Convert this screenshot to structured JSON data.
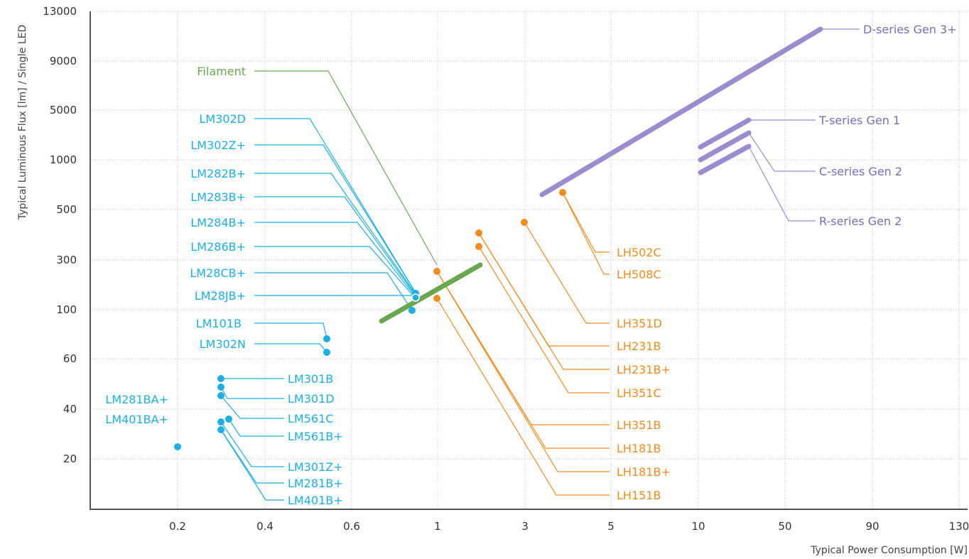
{
  "colors": {
    "lm": "#1ab0e6",
    "lh": "#f28c1e",
    "purple": "#9a8ccf",
    "purple_text": "#7a6bb8",
    "filament": "#6aa84f",
    "grid": "#bdbdbd",
    "axis": "#555555"
  },
  "chart_data": {
    "type": "scatter",
    "xlabel": "Typical Power Consumption [W]",
    "ylabel": "Typical Luminous Flux [lm] / Single LED",
    "x_ticks": [
      "0.2",
      "0.4",
      "0.6",
      "1",
      "3",
      "5",
      "10",
      "50",
      "90",
      "130"
    ],
    "y_ticks": [
      "13000",
      "9000",
      "5000",
      "1000",
      "500",
      "300",
      "100",
      "60",
      "40",
      "20"
    ],
    "y_scale": "categorical (non-linear)",
    "x_scale": "categorical (non-linear)",
    "grid": true,
    "series": [
      {
        "name": "LM101B",
        "family": "LM",
        "power_w": 0.54,
        "flux_lm": 76
      },
      {
        "name": "LM302N",
        "family": "LM",
        "power_w": 0.54,
        "flux_lm": 65
      },
      {
        "name": "LM301B",
        "family": "LM",
        "power_w": 0.3,
        "flux_lm": 52
      },
      {
        "name": "LM301D",
        "family": "LM",
        "power_w": 0.3,
        "flux_lm": 48
      },
      {
        "name": "LM561C",
        "family": "LM",
        "power_w": 0.3,
        "flux_lm": 45
      },
      {
        "name": "LM561B+",
        "family": "LM",
        "power_w": 0.32,
        "flux_lm": 36
      },
      {
        "name": "LM301Z+",
        "family": "LM",
        "power_w": 0.3,
        "flux_lm": 35
      },
      {
        "name": "LM281B+",
        "family": "LM",
        "power_w": 0.3,
        "flux_lm": 31
      },
      {
        "name": "LM401B+",
        "family": "LM",
        "power_w": 0.3,
        "flux_lm": 31
      },
      {
        "name": "LM281BA+ / LM401BA+",
        "family": "LM",
        "power_w": 0.2,
        "flux_lm": 25
      },
      {
        "name": "LM302D",
        "family": "LM",
        "power_w": 0.9,
        "flux_lm": 150
      },
      {
        "name": "LM302Z+",
        "family": "LM",
        "power_w": 0.9,
        "flux_lm": 140
      },
      {
        "name": "LM282B+",
        "family": "LM",
        "power_w": 0.9,
        "flux_lm": 135
      },
      {
        "name": "LM283B+",
        "family": "LM",
        "power_w": 0.9,
        "flux_lm": 130
      },
      {
        "name": "LM284B+",
        "family": "LM",
        "power_w": 0.9,
        "flux_lm": 125
      },
      {
        "name": "LM286B+",
        "family": "LM",
        "power_w": 0.9,
        "flux_lm": 120
      },
      {
        "name": "LM28CB+",
        "family": "LM",
        "power_w": 0.88,
        "flux_lm": 100
      },
      {
        "name": "LM28JB+",
        "family": "LM",
        "power_w": 0.88,
        "flux_lm": 100
      },
      {
        "name": "LH151B",
        "family": "LH",
        "power_w": 1.0,
        "flux_lm": 180
      },
      {
        "name": "LH181B+",
        "family": "LH",
        "power_w": 1.0,
        "flux_lm": 265
      },
      {
        "name": "LH181B",
        "family": "LH",
        "power_w": 1.0,
        "flux_lm": 265
      },
      {
        "name": "LH351B",
        "family": "LH",
        "power_w": 1.0,
        "flux_lm": 265
      },
      {
        "name": "LH231B",
        "family": "LH",
        "power_w": 2.0,
        "flux_lm": 380
      },
      {
        "name": "LH231B+",
        "family": "LH",
        "power_w": 2.0,
        "flux_lm": 390
      },
      {
        "name": "LH351C",
        "family": "LH",
        "power_w": 2.0,
        "flux_lm": 380
      },
      {
        "name": "LH351D",
        "family": "LH",
        "power_w": 3.0,
        "flux_lm": 450
      },
      {
        "name": "LH502C",
        "family": "LH",
        "power_w": 4.0,
        "flux_lm": 590
      },
      {
        "name": "LH508C",
        "family": "LH",
        "power_w": 4.0,
        "flux_lm": 590
      }
    ],
    "ranges": [
      {
        "name": "Filament",
        "power_w": [
          0.7,
          2.0
        ],
        "flux_lm": [
          90,
          280
        ]
      },
      {
        "name": "D-series Gen 3+",
        "power_w": [
          3.5,
          70
        ],
        "flux_lm": [
          560,
          12000
        ]
      },
      {
        "name": "T-series Gen 1",
        "power_w": [
          10,
          30
        ],
        "flux_lm": [
          1400,
          4500
        ]
      },
      {
        "name": "C-series Gen 2",
        "power_w": [
          10,
          30
        ],
        "flux_lm": [
          1000,
          3000
        ]
      },
      {
        "name": "R-series Gen 2",
        "power_w": [
          10,
          30
        ],
        "flux_lm": [
          800,
          2000
        ]
      }
    ]
  },
  "labels": {
    "filament": "Filament",
    "d_series": "D-series Gen 3+",
    "t_series": "T-series Gen 1",
    "c_series": "C-series Gen 2",
    "r_series": "R-series Gen 2",
    "lm302d": "LM302D",
    "lm302z": "LM302Z+",
    "lm282b": "LM282B+",
    "lm283b": "LM283B+",
    "lm284b": "LM284B+",
    "lm286b": "LM286B+",
    "lm28cb": "LM28CB+",
    "lm28jb": "LM28JB+",
    "lm101b": "LM101B",
    "lm302n": "LM302N",
    "lm301b": "LM301B",
    "lm301d": "LM301D",
    "lm561c": "LM561C",
    "lm561b": "LM561B+",
    "lm301z": "LM301Z+",
    "lm281b": "LM281B+",
    "lm401b": "LM401B+",
    "lm281ba": "LM281BA+",
    "lm401ba": "LM401BA+",
    "lh502c": "LH502C",
    "lh508c": "LH508C",
    "lh351d": "LH351D",
    "lh231b": "LH231B",
    "lh231bp": "LH231B+",
    "lh351c": "LH351C",
    "lh351b": "LH351B",
    "lh181b": "LH181B",
    "lh181bp": "LH181B+",
    "lh151b": "LH151B"
  }
}
